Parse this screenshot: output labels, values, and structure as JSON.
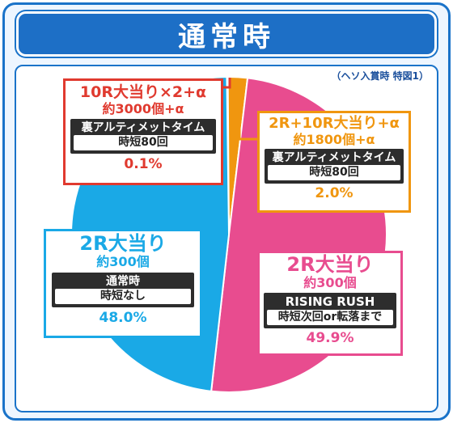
{
  "header": {
    "title": "通常時"
  },
  "note": "（ヘソ入賞時 特図1）",
  "colors": {
    "red": "#e03a2f",
    "orange": "#f0960f",
    "blue": "#1aa9e6",
    "pink": "#e84c8f",
    "title_bg": "#1d6fc6"
  },
  "chart_data": {
    "type": "pie",
    "title": "通常時",
    "slices": [
      {
        "label": "10R大当り×2+α",
        "value": 0.1,
        "color": "#e03a2f"
      },
      {
        "label": "2R+10R大当り+α",
        "value": 2.0,
        "color": "#f0960f"
      },
      {
        "label": "2R大当り (RISING RUSH)",
        "value": 49.9,
        "color": "#e84c8f"
      },
      {
        "label": "2R大当り (通常時)",
        "value": 48.0,
        "color": "#1aa9e6"
      }
    ]
  },
  "cards": {
    "red": {
      "title": "10R大当り×2+α",
      "payout": "約3000個+α",
      "mode": "裏アルティメットタイム",
      "jitan": "時短80回",
      "pct": "0.1%"
    },
    "orange": {
      "title": "2R+10R大当り+α",
      "payout": "約1800個+α",
      "mode": "裏アルティメットタイム",
      "jitan": "時短80回",
      "pct": "2.0%"
    },
    "blue": {
      "title": "2R大当り",
      "payout": "約300個",
      "mode": "通常時",
      "jitan": "時短なし",
      "pct": "48.0%"
    },
    "pink": {
      "title": "2R大当り",
      "payout": "約300個",
      "mode": "RISING RUSH",
      "jitan": "時短次回or転落まで",
      "pct": "49.9%"
    }
  }
}
